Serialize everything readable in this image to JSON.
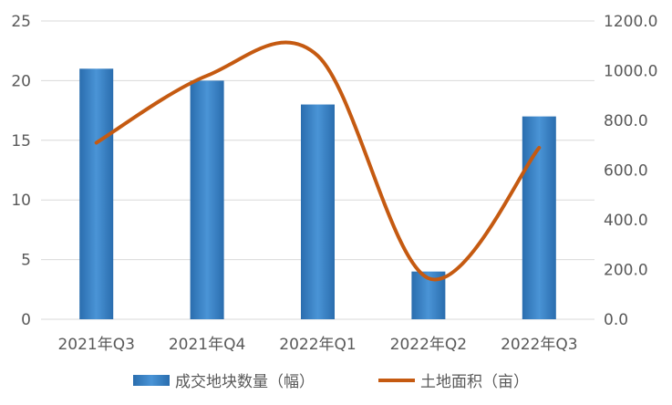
{
  "chart_data": {
    "type": "bar",
    "categories": [
      "2021年Q3",
      "2021年Q4",
      "2022年Q1",
      "2022年Q2",
      "2022年Q3"
    ],
    "series": [
      {
        "name": "成交地块数量（幅）",
        "type": "bar",
        "axis": "left",
        "values": [
          21,
          20,
          18,
          4,
          17
        ]
      },
      {
        "name": "土地面积（亩）",
        "type": "line",
        "axis": "right",
        "smooth": true,
        "values": [
          710,
          980,
          1060,
          165,
          690
        ]
      }
    ],
    "y_left": {
      "ylim": [
        0,
        25
      ],
      "ticks": [
        "0",
        "5",
        "10",
        "15",
        "20",
        "25"
      ]
    },
    "y_right": {
      "ylim": [
        0,
        1200
      ],
      "ticks": [
        "0.0",
        "200.0",
        "400.0",
        "600.0",
        "800.0",
        "1000.0",
        "1200.0"
      ]
    },
    "grid": true,
    "legend_position": "bottom",
    "colors": {
      "bar": "#2E75B6",
      "bar_light": "#4A94D6",
      "line": "#C55A11",
      "grid": "#D9D9D9",
      "text": "#595959"
    }
  }
}
